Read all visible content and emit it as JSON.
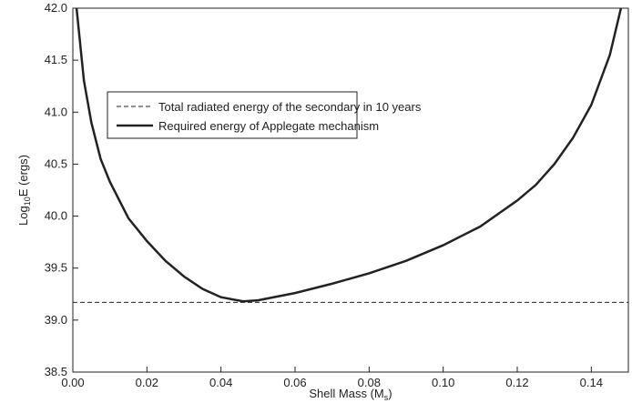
{
  "chart_data": {
    "type": "line",
    "xlabel_parts": [
      "Shell Mass (M",
      "s",
      ")"
    ],
    "ylabel_parts": [
      "Log",
      "10",
      "E (ergs)"
    ],
    "xlim": [
      0,
      0.15
    ],
    "ylim": [
      38.5,
      42.0
    ],
    "xticks": [
      {
        "value": 0,
        "label": "0.00"
      },
      {
        "value": 0.02,
        "label": "0.02"
      },
      {
        "value": 0.04,
        "label": "0.04"
      },
      {
        "value": 0.06,
        "label": "0.06"
      },
      {
        "value": 0.08,
        "label": "0.08"
      },
      {
        "value": 0.1,
        "label": "0.10"
      },
      {
        "value": 0.12,
        "label": "0.12"
      },
      {
        "value": 0.14,
        "label": "0.14"
      }
    ],
    "yticks": [
      {
        "value": 38.5,
        "label": "38.5"
      },
      {
        "value": 39.0,
        "label": "39.0"
      },
      {
        "value": 39.5,
        "label": "39.5"
      },
      {
        "value": 40.0,
        "label": "40.0"
      },
      {
        "value": 40.5,
        "label": "40.5"
      },
      {
        "value": 41.0,
        "label": "41.0"
      },
      {
        "value": 41.5,
        "label": "41.5"
      },
      {
        "value": 42.0,
        "label": "42.0"
      }
    ],
    "series": [
      {
        "name": "Total radiated energy of the secondary in 10 years",
        "color": "#222222",
        "dash": true,
        "width": 1,
        "x": [
          0,
          0.15
        ],
        "values": [
          39.17,
          39.17
        ]
      },
      {
        "name": "Required energy of Applegate mechanism",
        "color": "#222222",
        "dash": false,
        "width": 2.5,
        "x": [
          0.001,
          0.003,
          0.005,
          0.0075,
          0.01,
          0.015,
          0.02,
          0.025,
          0.03,
          0.035,
          0.04,
          0.046,
          0.05,
          0.06,
          0.07,
          0.08,
          0.09,
          0.1,
          0.11,
          0.12,
          0.125,
          0.13,
          0.135,
          0.14,
          0.145,
          0.148
        ],
        "values": [
          42.0,
          41.3,
          40.9,
          40.55,
          40.33,
          39.98,
          39.76,
          39.57,
          39.42,
          39.3,
          39.22,
          39.18,
          39.19,
          39.26,
          39.35,
          39.45,
          39.57,
          39.72,
          39.9,
          40.15,
          40.3,
          40.5,
          40.75,
          41.07,
          41.55,
          42.0
        ]
      }
    ]
  }
}
